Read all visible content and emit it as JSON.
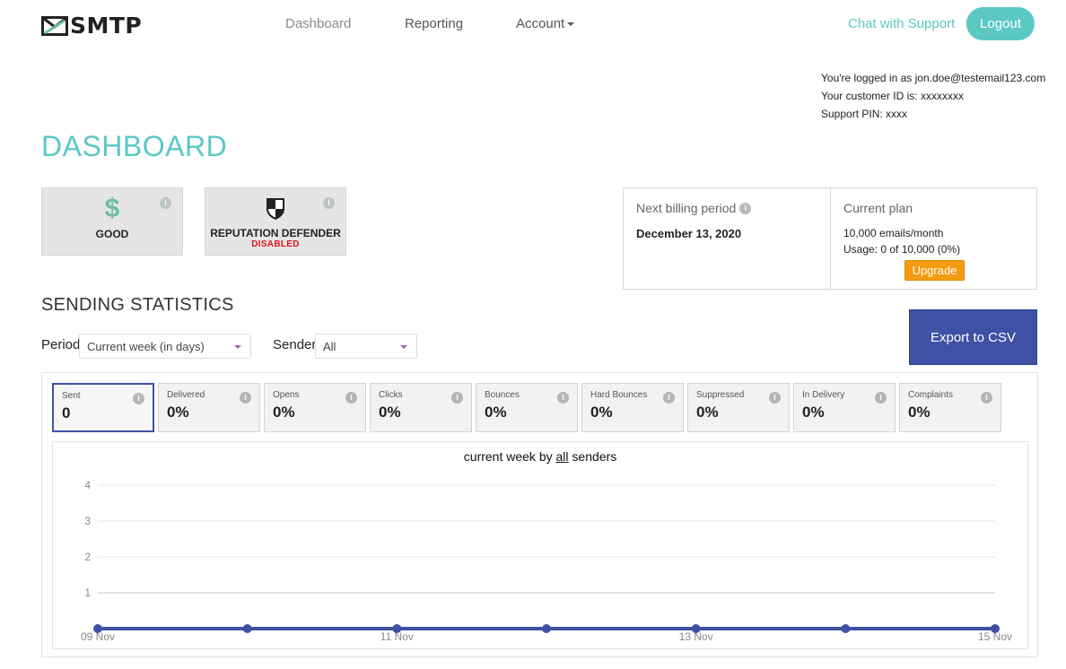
{
  "header": {
    "logo_text": "SMTP",
    "nav": [
      {
        "label": "Dashboard"
      },
      {
        "label": "Reporting"
      },
      {
        "label": "Account"
      }
    ],
    "chat_label": "Chat with Support",
    "logout_label": "Logout"
  },
  "user": {
    "logged_in_prefix": "You're logged in as",
    "email": "jon.doe@testemail123.com",
    "customer_id_prefix": "Your customer ID is:",
    "customer_id": "xxxxxxxx",
    "pin_prefix": "Support PIN:",
    "pin": "xxxx"
  },
  "page_title": "DASHBOARD",
  "tiles": {
    "good": {
      "label": "GOOD",
      "symbol": "$"
    },
    "reputation": {
      "label": "REPUTATION DEFENDER",
      "status": "DISABLED"
    }
  },
  "billing": {
    "next_label": "Next billing period",
    "next_date": "December 13, 2020",
    "plan_label": "Current plan",
    "plan_emails": "10,000 emails/month",
    "plan_usage": "Usage: 0 of 10,000 (0%)",
    "upgrade_label": "Upgrade"
  },
  "sending": {
    "title": "SENDING STATISTICS",
    "period_label": "Period",
    "period_value": "Current week (in days)",
    "sender_label": "Sender",
    "sender_value": "All",
    "export_label": "Export to CSV"
  },
  "stats": [
    {
      "name": "Sent",
      "value": "0"
    },
    {
      "name": "Delivered",
      "value": "0%"
    },
    {
      "name": "Opens",
      "value": "0%"
    },
    {
      "name": "Clicks",
      "value": "0%"
    },
    {
      "name": "Bounces",
      "value": "0%"
    },
    {
      "name": "Hard Bounces",
      "value": "0%"
    },
    {
      "name": "Suppressed",
      "value": "0%"
    },
    {
      "name": "In Delivery",
      "value": "0%"
    },
    {
      "name": "Complaints",
      "value": "0%"
    }
  ],
  "chart_title": {
    "prefix": "current week by ",
    "link": "all",
    "suffix": " senders"
  },
  "chart_data": {
    "type": "line",
    "x": [
      "09 Nov",
      "10 Nov",
      "11 Nov",
      "12 Nov",
      "13 Nov",
      "14 Nov",
      "15 Nov"
    ],
    "x_tick_labels": [
      "09 Nov",
      "11 Nov",
      "13 Nov",
      "15 Nov"
    ],
    "series": [
      {
        "values": [
          0,
          0,
          0,
          0,
          0,
          0,
          0
        ]
      }
    ],
    "y_ticks": [
      1,
      2,
      3,
      4
    ],
    "ylim": [
      0,
      4
    ],
    "grid": true,
    "color": "#3f51a5"
  }
}
